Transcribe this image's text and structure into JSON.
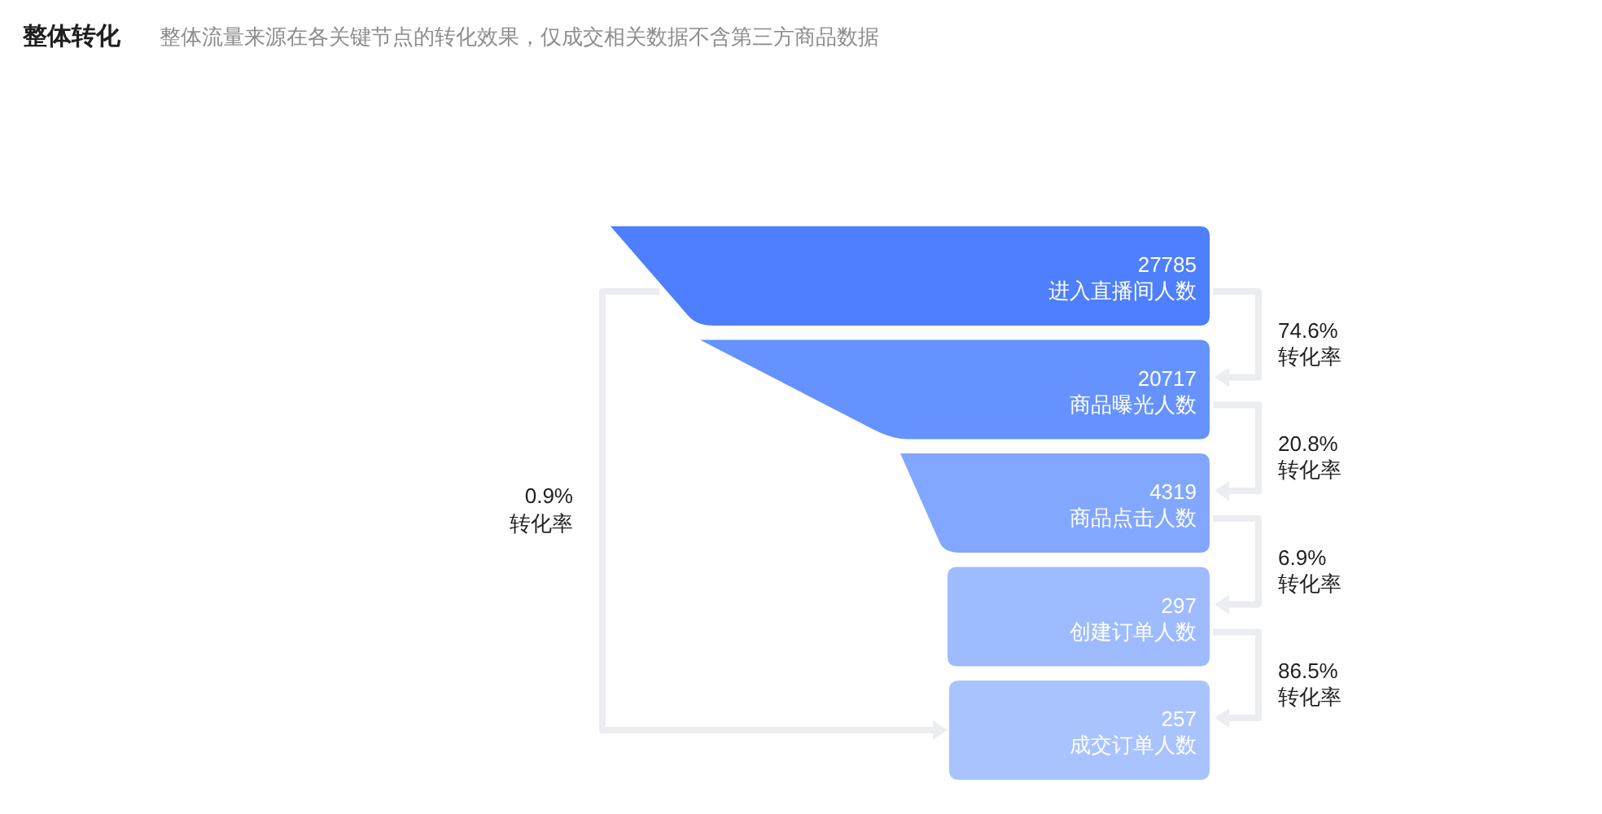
{
  "chart_data": {
    "type": "other",
    "title": "整体转化",
    "subtitle": "整体流量来源在各关键节点的转化效果，仅成交相关数据不含第三方商品数据",
    "categories": [
      "进入直播间人数",
      "商品曝光人数",
      "商品点击人数",
      "创建订单人数",
      "成交订单人数"
    ],
    "values": [
      27785,
      20717,
      4319,
      297,
      257
    ],
    "colors": [
      "#4d7ffe",
      "#6592ff",
      "#82a7ff",
      "#9ebbff",
      "#a9c3ff"
    ],
    "data_labels": true,
    "annotations": [
      "74.6%\n转化率",
      "20.8%\n转化率",
      "6.9%\n转化率",
      "86.5%\n转化率",
      "0.9%\n转化率"
    ]
  }
}
